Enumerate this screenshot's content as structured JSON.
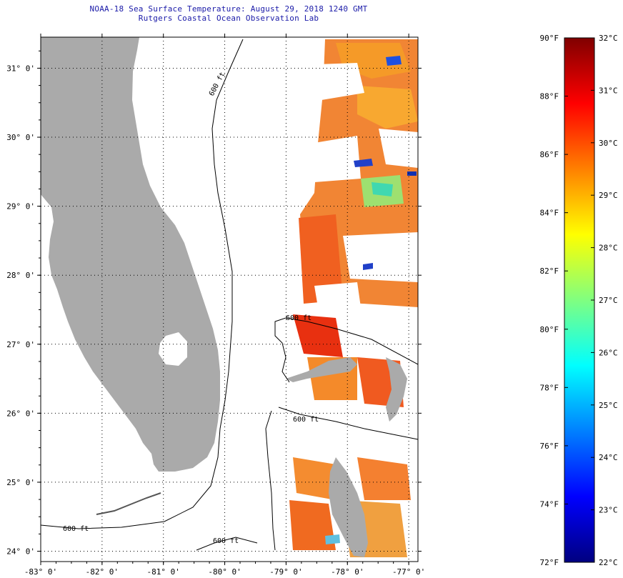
{
  "title": {
    "line1": "NOAA-18 Sea Surface Temperature:  August 29, 2018 1240 GMT",
    "line2": "Rutgers Coastal Ocean Observation Lab"
  },
  "map": {
    "lon_range": [
      -83,
      -76.85
    ],
    "lat_range": [
      23.85,
      31.45
    ],
    "lon_ticks": [
      "-83° 0'",
      "-82° 0'",
      "-81° 0'",
      "-80° 0'",
      "-79° 0'",
      "-78° 0'",
      "-77° 0'"
    ],
    "lat_ticks": [
      "31° 0'",
      "30° 0'",
      "29° 0'",
      "28° 0'",
      "27° 0'",
      "26° 0'",
      "25° 0'",
      "24° 0'"
    ],
    "contour_labels": [
      "600 ft",
      "600 ft",
      "600 ft",
      "600 ft",
      "600 ft"
    ],
    "colors": {
      "land": "#aaaaaa",
      "grid": "#000000"
    }
  },
  "colorbar": {
    "fahrenheit": [
      "90°F",
      "88°F",
      "86°F",
      "84°F",
      "82°F",
      "80°F",
      "78°F",
      "76°F",
      "74°F",
      "72°F"
    ],
    "celsius": [
      "32°C",
      "31°C",
      "30°C",
      "29°C",
      "28°C",
      "27°C",
      "26°C",
      "25°C",
      "24°C",
      "23°C",
      "22°C"
    ],
    "range_c": [
      22,
      32
    ],
    "stops": [
      "#000080",
      "#0000ff",
      "#0080ff",
      "#00ffff",
      "#80ff80",
      "#ffff00",
      "#ff8000",
      "#ff0000",
      "#800000"
    ]
  }
}
